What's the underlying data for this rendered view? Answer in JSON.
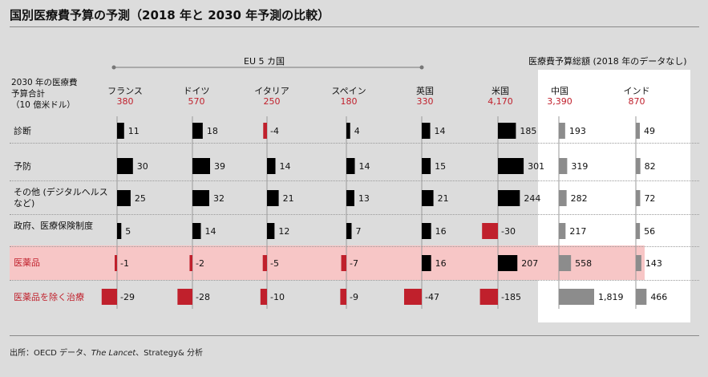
{
  "title": "国別医療費予算の予測（2018 年と 2030 年予測の比較）",
  "eu_label": "EU 5 カ国",
  "budget_label": "医療費予算総額 (2018 年のデータなし)",
  "total_label": [
    "2030 年の医療費",
    "予算合計",
    "（10 億米ドル）"
  ],
  "source": {
    "prefix": "出所：OECD データ、",
    "lancet": "The Lancet",
    "suffix": "、Strategy& 分析"
  },
  "colors": {
    "positive": "#000000",
    "negative": "#c0202c",
    "total": "#8c8c8c",
    "accent": "#c0202c"
  },
  "chart_data": {
    "type": "bar",
    "title": "国別医療費予算の予測（2018 年と 2030 年予測の比較）",
    "countries": [
      {
        "name": "フランス",
        "total": "380",
        "group": "EU5",
        "kind": "change"
      },
      {
        "name": "ドイツ",
        "total": "570",
        "group": "EU5",
        "kind": "change"
      },
      {
        "name": "イタリア",
        "total": "250",
        "group": "EU5",
        "kind": "change"
      },
      {
        "name": "スペイン",
        "total": "180",
        "group": "EU5",
        "kind": "change"
      },
      {
        "name": "英国",
        "total": "330",
        "group": "EU5",
        "kind": "change"
      },
      {
        "name": "米国",
        "total": "4,170",
        "group": "other",
        "kind": "change"
      },
      {
        "name": "中国",
        "total": "3,390",
        "group": "budget",
        "kind": "total"
      },
      {
        "name": "インド",
        "total": "870",
        "group": "budget",
        "kind": "total"
      }
    ],
    "categories": [
      {
        "label": "診断",
        "highlight": false,
        "red_label": false
      },
      {
        "label": "予防",
        "highlight": false,
        "red_label": false
      },
      {
        "label": "その他 (デジタルヘルス\nなど)",
        "highlight": false,
        "red_label": false
      },
      {
        "label": "政府、医療保険制度",
        "highlight": false,
        "red_label": false
      },
      {
        "label": "医薬品",
        "highlight": true,
        "red_label": true
      },
      {
        "label": "医薬品を除く治療",
        "highlight": false,
        "red_label": true
      }
    ],
    "values": [
      [
        11,
        18,
        -4,
        4,
        14,
        185,
        193,
        49
      ],
      [
        30,
        39,
        14,
        14,
        15,
        301,
        319,
        82
      ],
      [
        25,
        32,
        21,
        13,
        21,
        244,
        282,
        72
      ],
      [
        5,
        14,
        12,
        7,
        16,
        -30,
        217,
        56
      ],
      [
        -1,
        -2,
        -5,
        -7,
        16,
        207,
        558,
        143
      ],
      [
        -29,
        -28,
        -10,
        -9,
        -47,
        -185,
        1819,
        466
      ]
    ],
    "labels": [
      [
        "11",
        "18",
        "-4",
        "4",
        "14",
        "185",
        "193",
        "49"
      ],
      [
        "30",
        "39",
        "14",
        "14",
        "15",
        "301",
        "319",
        "82"
      ],
      [
        "25",
        "32",
        "21",
        "13",
        "21",
        "244",
        "282",
        "72"
      ],
      [
        "5",
        "14",
        "12",
        "7",
        "16",
        "-30",
        "217",
        "56"
      ],
      [
        "-1",
        "-2",
        "-5",
        "-7",
        "16",
        "207",
        "558",
        "143"
      ],
      [
        "-29",
        "-28",
        "-10",
        "-9",
        "-47",
        "-185",
        "1,819",
        "466"
      ]
    ],
    "unit": "10 億米ドル"
  }
}
